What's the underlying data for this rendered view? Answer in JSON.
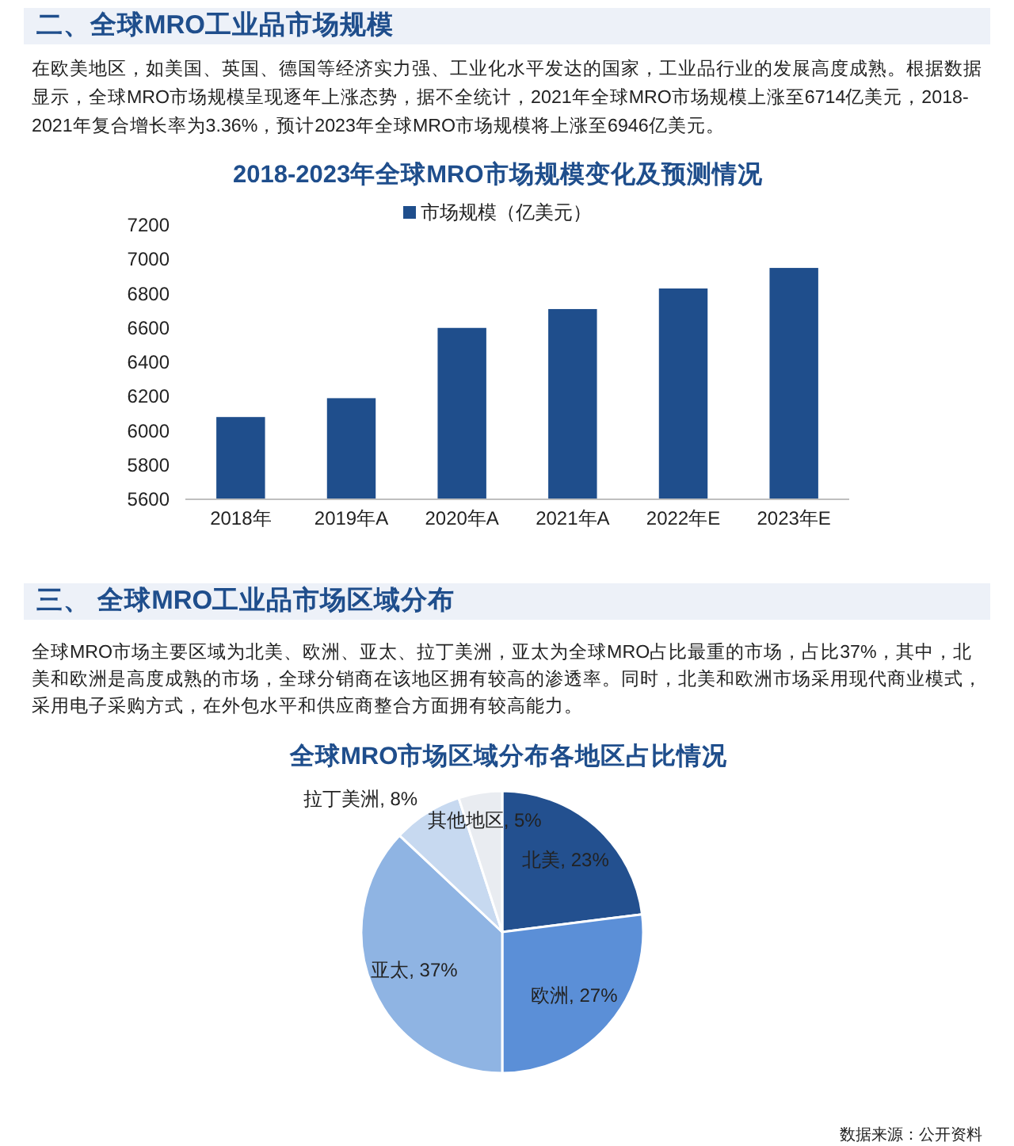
{
  "chart_data": [
    {
      "type": "bar",
      "title": "2018-2023年全球MRO市场规模变化及预测情况",
      "annotations": [
        "二、全球MRO工业品市场规模",
        "在欧美地区，如美国、英国、德国等经济实力强、工业化水平发达的国家，工业品行业的发展高度成熟。根据数据显示，全球MRO市场规模呈现逐年上涨态势，据不全统计，2021年全球MRO市场规模上涨至6714亿美元，2018-2021年复合增长率为3.36%，预计2023年全球MRO市场规模将上涨至6946亿美元。"
      ],
      "categories": [
        "2018年",
        "2019年A",
        "2020年A",
        "2021年A",
        "2022年E",
        "2023年E"
      ],
      "series": [
        {
          "name": "市场规模（亿美元）",
          "color": "#1f4e8c",
          "values": [
            6080,
            6190,
            6600,
            6710,
            6830,
            6950
          ]
        }
      ],
      "ylim": [
        5600,
        7200
      ],
      "yticks": [
        5600,
        5800,
        6000,
        6200,
        6400,
        6600,
        6800,
        7000,
        7200
      ],
      "legend": "top"
    },
    {
      "type": "pie",
      "title": "全球MRO市场区域分布各地区占比情况",
      "annotations": [
        "三、 全球MRO工业品市场区域分布",
        "全球MRO市场主要区域为北美、欧洲、亚太、拉丁美洲，亚太为全球MRO占比最重的市场，占比37%，其中，北美和欧洲是高度成熟的市场，全球分销商在该地区拥有较高的渗透率。同时，北美和欧洲市场采用现代商业模式，采用电子采购方式，在外包水平和供应商整合方面拥有较高能力。",
        "数据来源：公开资料"
      ],
      "categories": [
        "北美",
        "欧洲",
        "亚太",
        "拉丁美洲",
        "其他地区"
      ],
      "values": [
        23,
        27,
        37,
        8,
        5
      ],
      "colors": [
        "#23508f",
        "#5b8fd7",
        "#8fb4e3",
        "#c7d9f0",
        "#e9ecf1"
      ],
      "value_labels": [
        ", 23%",
        ", 27%",
        ", 37%",
        ", 8%",
        ", 5%"
      ]
    }
  ]
}
